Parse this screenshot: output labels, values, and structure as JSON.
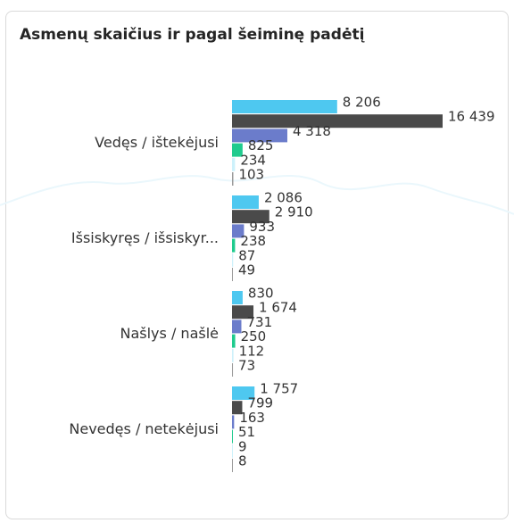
{
  "chart_data": {
    "type": "hbar-grouped",
    "title": "Asmenų skaičius ir pagal šeiminę padėtį",
    "categories": [
      "Vedęs / ištekėjusi",
      "Išsiskyręs / išsiskyr...",
      "Našlys / našlė",
      "Nevedęs / netekėjusi"
    ],
    "series": [
      {
        "color": "#4ec8f0",
        "values": [
          8206,
          2086,
          830,
          1757
        ],
        "value_labels": [
          "8 206",
          "2 086",
          "830",
          "1 757"
        ]
      },
      {
        "color": "#4a4a4a",
        "values": [
          16439,
          2910,
          1674,
          799
        ],
        "value_labels": [
          "16 439",
          "2 910",
          "1 674",
          "799"
        ]
      },
      {
        "color": "#6b7ccb",
        "values": [
          4318,
          933,
          731,
          163
        ],
        "value_labels": [
          "4 318",
          "933",
          "731",
          "163"
        ]
      },
      {
        "color": "#1fcb8e",
        "values": [
          825,
          238,
          250,
          51
        ],
        "value_labels": [
          "825",
          "238",
          "250",
          "51"
        ]
      },
      {
        "color": "#cdf1fb",
        "values": [
          234,
          87,
          112,
          9
        ],
        "value_labels": [
          "234",
          "87",
          "112",
          "9"
        ]
      },
      {
        "color": "#9a9a9a",
        "values": [
          103,
          49,
          73,
          8
        ],
        "value_labels": [
          "103",
          "49",
          "73",
          "8"
        ]
      }
    ]
  }
}
